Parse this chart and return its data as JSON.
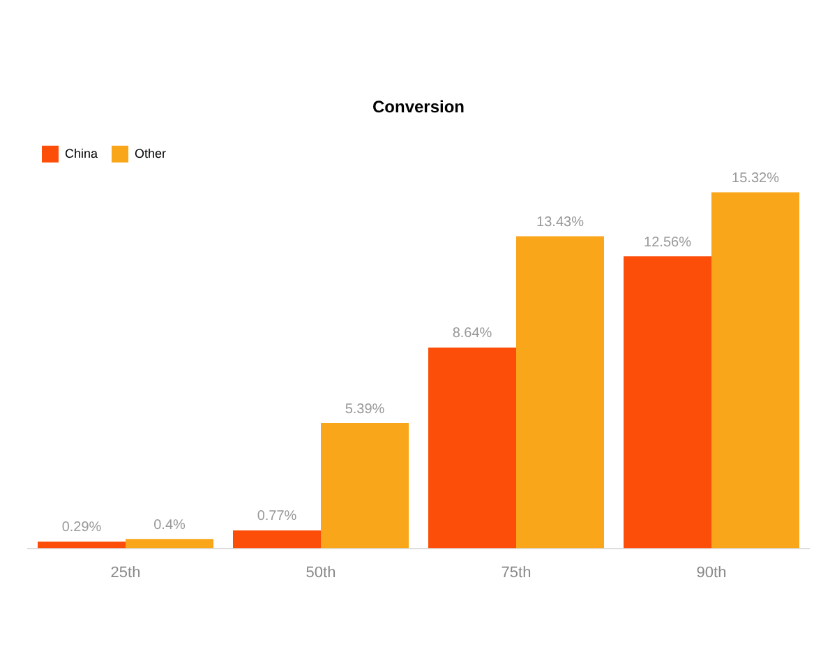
{
  "chart_data": {
    "type": "bar",
    "title": "Conversion",
    "categories": [
      "25th",
      "50th",
      "75th",
      "90th"
    ],
    "series": [
      {
        "name": "China",
        "color": "#fc4e08",
        "values": [
          0.29,
          0.77,
          8.64,
          12.56
        ],
        "value_labels": [
          "0.29%",
          "0.77%",
          "8.64%",
          "12.56%"
        ]
      },
      {
        "name": "Other",
        "color": "#f9a61a",
        "values": [
          0.4,
          5.39,
          13.43,
          15.32
        ],
        "value_labels": [
          "0.4%",
          "5.39%",
          "13.43%",
          "15.32%"
        ]
      }
    ],
    "legend": "top left"
  }
}
